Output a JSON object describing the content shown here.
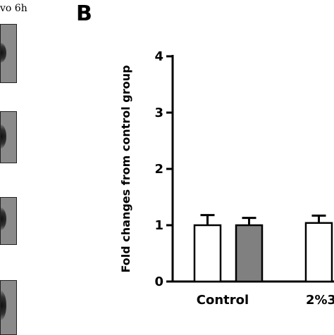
{
  "panel_a": {
    "tag_text": "vo 6h"
  },
  "panel_b": {
    "label": "B"
  },
  "chart_data": {
    "type": "bar",
    "title": "",
    "xlabel": "",
    "ylabel": "Fold changes from control group",
    "ylim": [
      0,
      4
    ],
    "yticks": [
      "0",
      "1",
      "2",
      "3",
      "4"
    ],
    "grid": false,
    "categories": [
      "Control",
      "2%3"
    ],
    "series": [
      {
        "values": [
          1.0,
          1.04
        ],
        "errors": [
          0.18,
          0.13
        ],
        "color": "#ffffff"
      },
      {
        "values": [
          1.0,
          null
        ],
        "errors": [
          0.13,
          null
        ],
        "color": "#808080"
      }
    ]
  }
}
